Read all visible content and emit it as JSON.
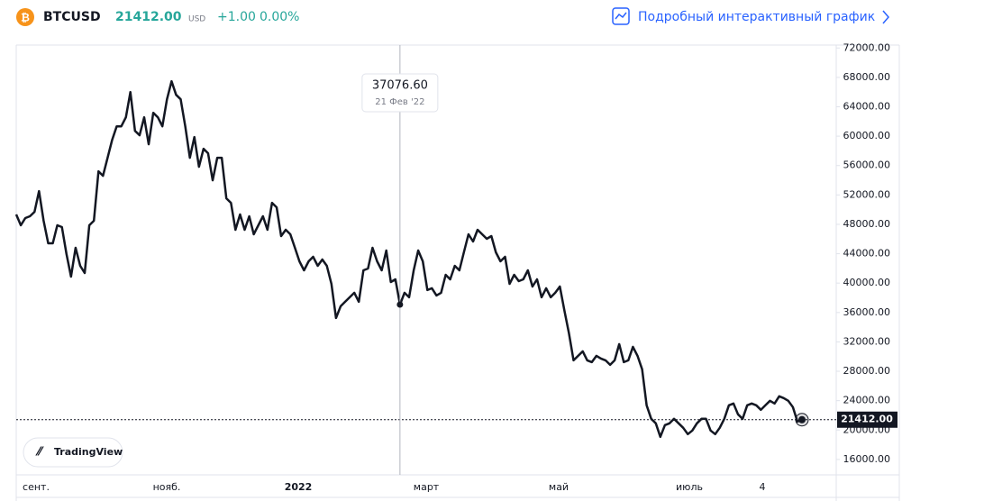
{
  "header": {
    "symbol": "BTCUSD",
    "price": "21412.00",
    "currency": "USD",
    "change": "+1.00",
    "change_percent": "0.00%",
    "link": "Подробный интерактивный график"
  },
  "chart_data": {
    "type": "line",
    "x_labels": [
      "сент.",
      "нояб.",
      "2022",
      "март",
      "май",
      "июль",
      "4"
    ],
    "series": [
      {
        "name": "BTCUSD",
        "color": "#131722",
        "values": [
          49338,
          47868,
          48848,
          49093,
          49705,
          52523,
          48480,
          45418,
          45418,
          47868,
          47623,
          43948,
          40885,
          44805,
          42355,
          41375,
          47868,
          48480,
          55218,
          54605,
          57055,
          59505,
          61343,
          61343,
          62568,
          65998,
          60730,
          60118,
          62568,
          58893,
          63180,
          62568,
          61343,
          65018,
          67468,
          65630,
          65018,
          61343,
          57055,
          59873,
          55830,
          58280,
          57668,
          53993,
          57055,
          57055,
          51543,
          50930,
          47255,
          49338,
          47255,
          49093,
          46643,
          47868,
          49093,
          47255,
          50930,
          50318,
          46398,
          47255,
          46643,
          44805,
          42968,
          41743,
          42968,
          43580,
          42355,
          43213,
          42355,
          39905,
          35250,
          36843,
          37455,
          38068,
          38680,
          37455,
          41743,
          41988,
          44805,
          42968,
          41743,
          44438,
          40150,
          40518,
          37076.6,
          38680,
          38068,
          41743,
          44438,
          42968,
          39048,
          39293,
          38313,
          38680,
          41130,
          40518,
          42355,
          41743,
          44193,
          46643,
          45663,
          47255,
          46643,
          46030,
          46398,
          44193,
          42968,
          43580,
          39905,
          41130,
          40273,
          40518,
          41743,
          39538,
          40518,
          38068,
          39293,
          38068,
          38680,
          39538,
          36230,
          33168,
          29493,
          30105,
          30718,
          29493,
          29248,
          30105,
          29738,
          29493,
          28880,
          29493,
          31698,
          29248,
          29493,
          31330,
          30105,
          28268,
          23368,
          21530,
          20918,
          19080,
          20673,
          20918,
          21530,
          20918,
          20305,
          19448,
          19938,
          20918,
          21530,
          21530,
          19938,
          19448,
          20305,
          21530,
          23368,
          23613,
          22143,
          21530,
          23368,
          23613,
          23368,
          22755,
          23368,
          23980,
          23613,
          24593,
          24348,
          23980,
          23123,
          21163,
          21412
        ]
      }
    ],
    "ylim": [
      13900,
      72400
    ],
    "yticks": [
      {
        "value": 72000,
        "label": "72000.00"
      },
      {
        "value": 68000,
        "label": "68000.00"
      },
      {
        "value": 64000,
        "label": "64000.00"
      },
      {
        "value": 60000,
        "label": "60000.00"
      },
      {
        "value": 56000,
        "label": "56000.00"
      },
      {
        "value": 52000,
        "label": "52000.00"
      },
      {
        "value": 48000,
        "label": "48000.00"
      },
      {
        "value": 44000,
        "label": "44000.00"
      },
      {
        "value": 40000,
        "label": "40000.00"
      },
      {
        "value": 36000,
        "label": "36000.00"
      },
      {
        "value": 32000,
        "label": "32000.00"
      },
      {
        "value": 28000,
        "label": "28000.00"
      },
      {
        "value": 24000,
        "label": "24000.00"
      },
      {
        "value": 20000,
        "label": "20000.00"
      },
      {
        "value": 16000,
        "label": "16000.00"
      }
    ],
    "crosshair": {
      "value": 37076.6,
      "label": "37076.60",
      "date": "21 Фев '22"
    },
    "last_price": {
      "value": 21412,
      "label": "21412.00"
    },
    "watermark": "TradingView"
  }
}
